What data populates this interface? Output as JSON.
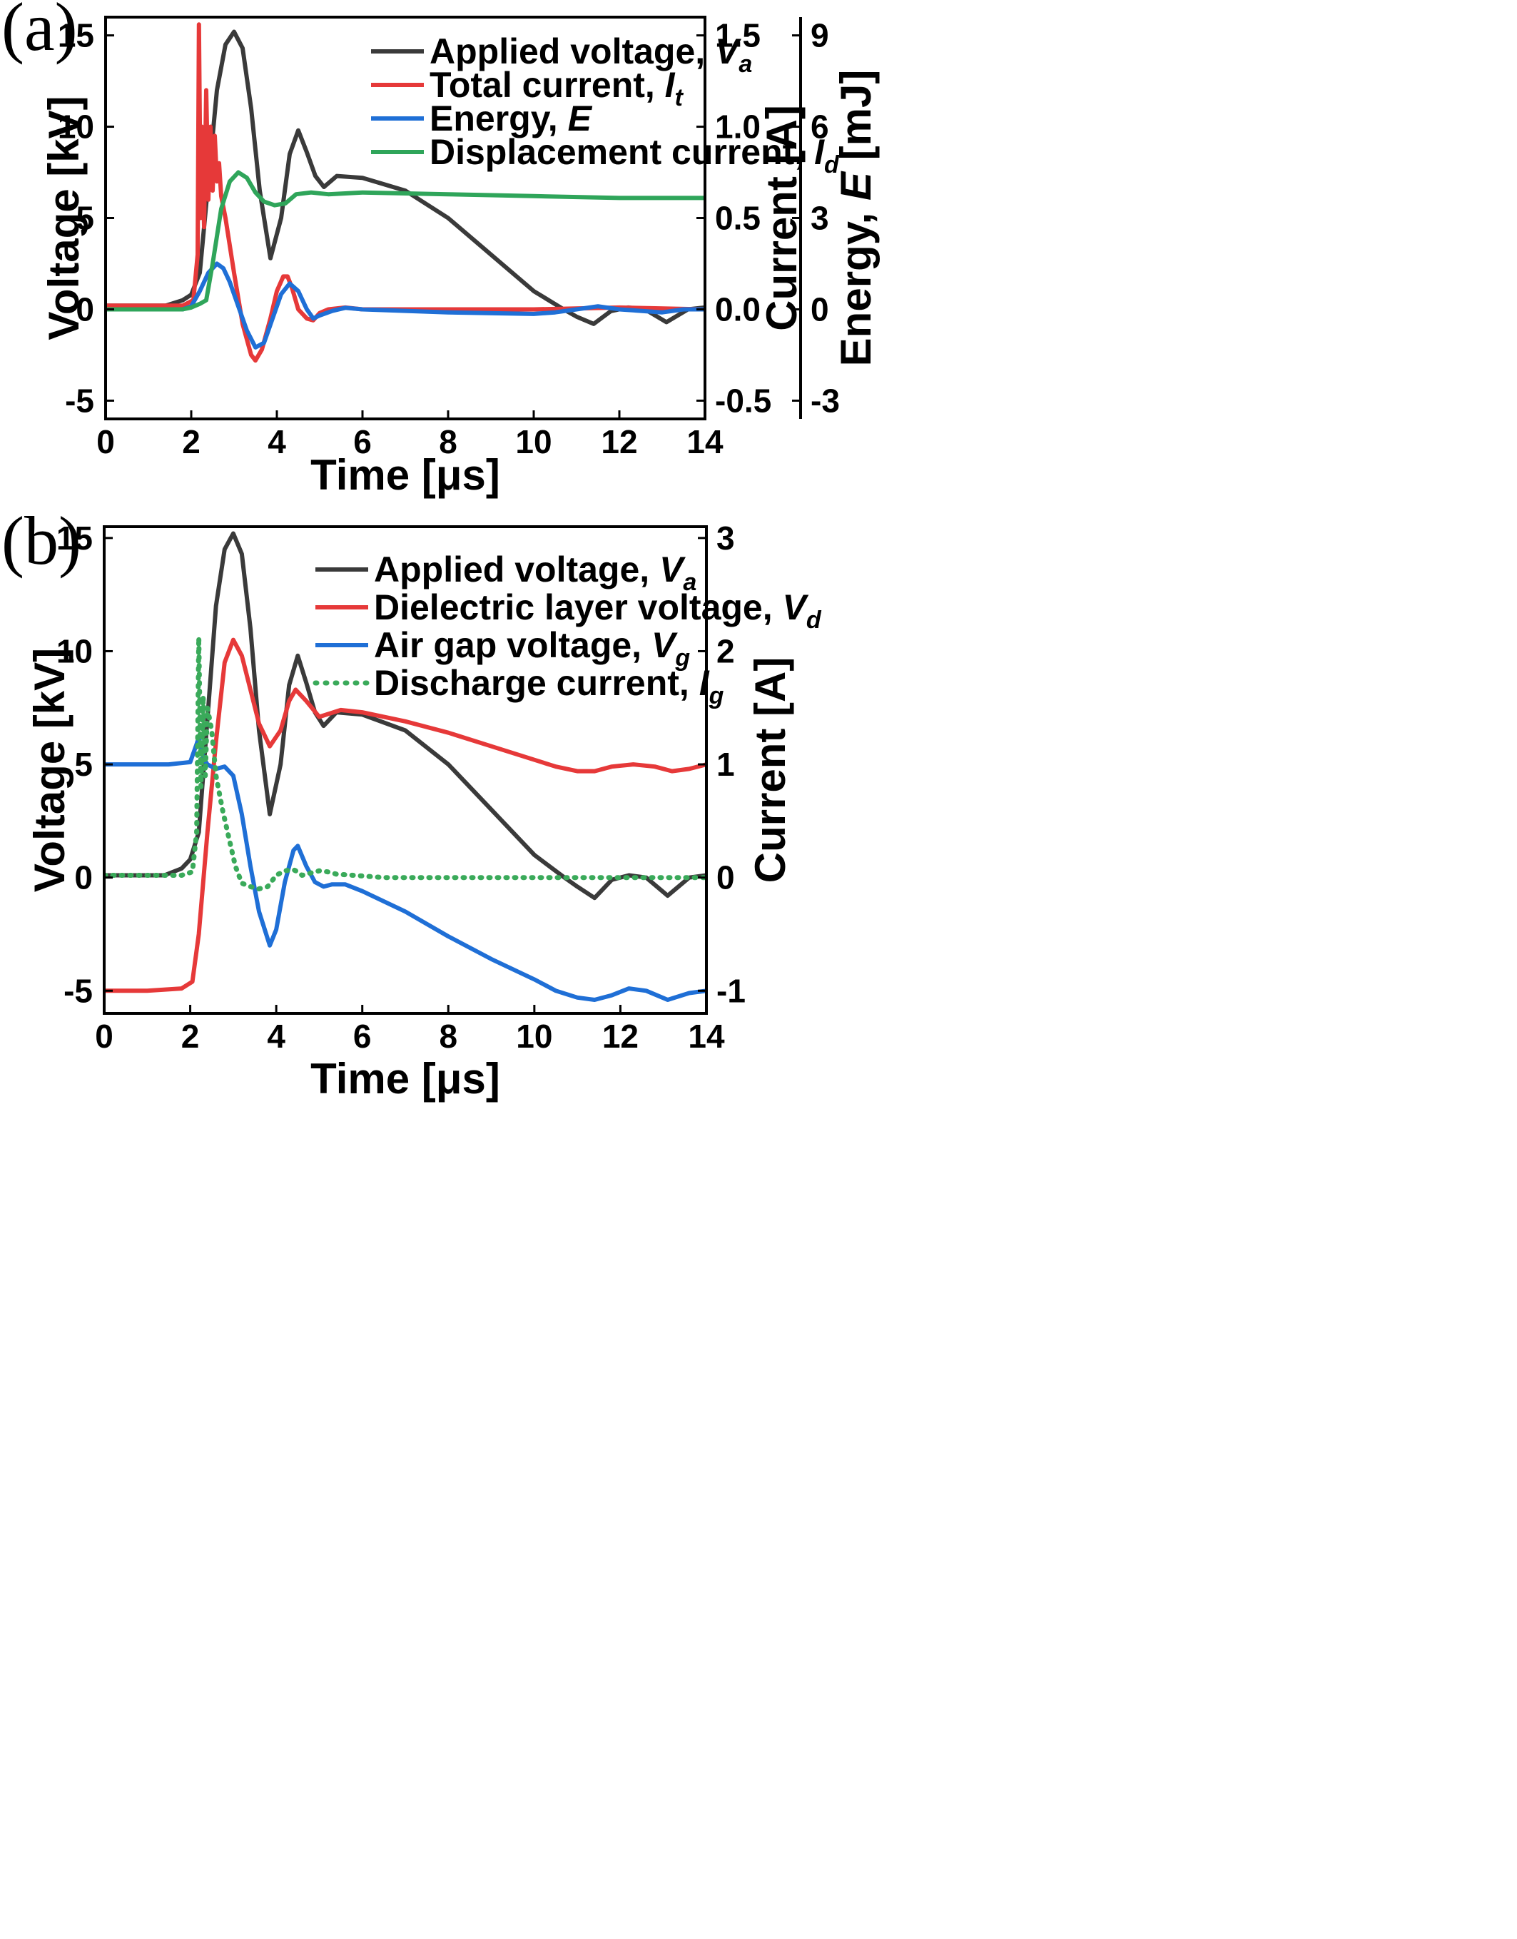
{
  "chart_data": [
    {
      "panel_label": "(a)",
      "type": "line",
      "xlabel": "Time [μs]",
      "xlim": [
        0,
        14
      ],
      "xticks": [
        "0",
        "2",
        "4",
        "6",
        "8",
        "10",
        "12",
        "14"
      ],
      "axes": {
        "left": {
          "label": "Voltage [kV]",
          "lim": [
            -6,
            16
          ],
          "ticks": [
            "-5",
            "0",
            "5",
            "10",
            "15"
          ]
        },
        "right": {
          "label": "Current [A]",
          "lim": [
            -0.6,
            1.6
          ],
          "ticks": [
            "-0.5",
            "0.0",
            "0.5",
            "1.0",
            "1.5"
          ]
        },
        "right2": {
          "label": "Energy, E [mJ]",
          "lim": [
            -3.6,
            9.6
          ],
          "ticks": [
            "-3",
            "0",
            "3",
            "6",
            "9"
          ]
        }
      },
      "legend_position": "top-right",
      "series": [
        {
          "name": "Applied voltage, Va",
          "color": "#3a3a3a",
          "axis": "left",
          "style": "solid",
          "x": [
            0,
            1.4,
            1.8,
            2.0,
            2.2,
            2.4,
            2.6,
            2.8,
            3.0,
            3.2,
            3.4,
            3.6,
            3.85,
            4.1,
            4.3,
            4.5,
            4.7,
            4.9,
            5.1,
            5.4,
            6.0,
            7.0,
            8.0,
            9.0,
            10.0,
            10.7,
            11.0,
            11.4,
            11.8,
            12.2,
            12.6,
            13.1,
            13.6,
            14.0
          ],
          "y": [
            0.2,
            0.2,
            0.5,
            0.8,
            2.0,
            7.0,
            12.0,
            14.5,
            15.2,
            14.3,
            11.0,
            6.5,
            2.8,
            5.0,
            8.5,
            9.8,
            8.6,
            7.3,
            6.7,
            7.3,
            7.2,
            6.5,
            5.0,
            3.0,
            1.0,
            0.0,
            -0.4,
            -0.8,
            -0.1,
            0.1,
            0.0,
            -0.7,
            0.0,
            0.1
          ]
        },
        {
          "name": "Total current, It",
          "color": "#e63939",
          "axis": "right",
          "style": "solid",
          "x": [
            0,
            1.8,
            2.05,
            2.15,
            2.18,
            2.22,
            2.25,
            2.3,
            2.35,
            2.4,
            2.45,
            2.5,
            2.55,
            2.6,
            2.65,
            2.7,
            2.8,
            3.0,
            3.2,
            3.4,
            3.5,
            3.65,
            3.85,
            4.0,
            4.15,
            4.25,
            4.35,
            4.5,
            4.7,
            4.85,
            5.0,
            5.2,
            5.6,
            6.0,
            8.0,
            10.0,
            12.0,
            14.0
          ],
          "y": [
            0.02,
            0.02,
            0.05,
            0.3,
            1.56,
            0.5,
            1.0,
            0.45,
            1.2,
            0.6,
            1.0,
            0.65,
            0.95,
            0.7,
            0.8,
            0.62,
            0.5,
            0.2,
            -0.08,
            -0.25,
            -0.28,
            -0.22,
            -0.05,
            0.1,
            0.18,
            0.18,
            0.12,
            0.0,
            -0.05,
            -0.06,
            -0.02,
            0.0,
            0.01,
            0.0,
            0.0,
            0.0,
            0.01,
            0.0
          ]
        },
        {
          "name": "Energy, E",
          "color": "#1f6fd6",
          "axis": "right2",
          "style": "solid",
          "x": [
            0,
            1.8,
            2.0,
            2.2,
            2.4,
            2.6,
            2.75,
            2.9,
            3.1,
            3.3,
            3.5,
            3.7,
            3.9,
            4.1,
            4.3,
            4.5,
            4.7,
            4.85,
            5.0,
            5.3,
            5.6,
            6.0,
            8.0,
            10.0,
            10.5,
            11.0,
            11.5,
            12.0,
            12.5,
            13.0,
            13.5,
            14.0
          ],
          "y": [
            0.0,
            0.0,
            0.1,
            0.6,
            1.2,
            1.5,
            1.35,
            0.9,
            0.1,
            -0.7,
            -1.25,
            -1.1,
            -0.3,
            0.5,
            0.85,
            0.6,
            0.0,
            -0.3,
            -0.2,
            -0.05,
            0.05,
            0.0,
            -0.1,
            -0.15,
            -0.1,
            0.0,
            0.1,
            0.0,
            -0.05,
            -0.1,
            0.0,
            0.0
          ]
        },
        {
          "name": "Displacement current, Id",
          "color": "#2fa55a",
          "axis": "right",
          "style": "solid",
          "x": [
            0,
            1.8,
            2.0,
            2.2,
            2.35,
            2.5,
            2.7,
            2.9,
            3.1,
            3.3,
            3.5,
            3.7,
            3.95,
            4.2,
            4.45,
            4.8,
            5.2,
            6.0,
            8.0,
            10.0,
            12.0,
            14.0
          ],
          "y": [
            0.0,
            0.0,
            0.01,
            0.03,
            0.05,
            0.25,
            0.55,
            0.7,
            0.75,
            0.72,
            0.64,
            0.59,
            0.57,
            0.58,
            0.63,
            0.64,
            0.63,
            0.64,
            0.63,
            0.62,
            0.61,
            0.61
          ]
        }
      ]
    },
    {
      "panel_label": "(b)",
      "type": "line",
      "xlabel": "Time [μs]",
      "xlim": [
        0,
        14
      ],
      "xticks": [
        "0",
        "2",
        "4",
        "6",
        "8",
        "10",
        "12",
        "14"
      ],
      "axes": {
        "left": {
          "label": "Voltage [kV]",
          "lim": [
            -6,
            15.5
          ],
          "ticks": [
            "-5",
            "0",
            "5",
            "10",
            "15"
          ]
        },
        "right": {
          "label": "Current [A]",
          "lim": [
            -1.2,
            3.1
          ],
          "ticks": [
            "-1",
            "0",
            "1",
            "2",
            "3"
          ]
        }
      },
      "legend_position": "top-right",
      "series": [
        {
          "name": "Applied voltage, Va",
          "color": "#3a3a3a",
          "axis": "left",
          "style": "solid",
          "x": [
            0,
            1.4,
            1.8,
            2.0,
            2.2,
            2.4,
            2.6,
            2.8,
            3.0,
            3.2,
            3.4,
            3.6,
            3.85,
            4.1,
            4.3,
            4.5,
            4.7,
            4.9,
            5.1,
            5.4,
            6.0,
            7.0,
            8.0,
            9.0,
            10.0,
            10.7,
            11.0,
            11.4,
            11.8,
            12.2,
            12.6,
            13.1,
            13.6,
            14.0
          ],
          "y": [
            0.1,
            0.1,
            0.4,
            0.8,
            2.0,
            7.0,
            12.0,
            14.5,
            15.2,
            14.3,
            11.0,
            6.5,
            2.8,
            5.0,
            8.5,
            9.8,
            8.6,
            7.3,
            6.7,
            7.3,
            7.2,
            6.5,
            5.0,
            3.0,
            1.0,
            0.0,
            -0.4,
            -0.9,
            -0.1,
            0.1,
            0.0,
            -0.8,
            0.0,
            0.1
          ]
        },
        {
          "name": "Dielectric layer voltage, Vd",
          "color": "#e63939",
          "axis": "left",
          "style": "solid",
          "x": [
            0,
            1.0,
            1.8,
            2.05,
            2.2,
            2.4,
            2.6,
            2.8,
            3.0,
            3.2,
            3.4,
            3.6,
            3.85,
            4.1,
            4.3,
            4.45,
            4.7,
            5.0,
            5.5,
            6.0,
            7.0,
            8.0,
            9.0,
            10.0,
            10.5,
            11.0,
            11.4,
            11.8,
            12.3,
            12.8,
            13.2,
            13.6,
            14.0
          ],
          "y": [
            -5.0,
            -5.0,
            -4.9,
            -4.6,
            -2.5,
            2.0,
            6.0,
            9.5,
            10.5,
            9.8,
            8.3,
            6.8,
            5.8,
            6.5,
            7.8,
            8.3,
            7.8,
            7.1,
            7.4,
            7.3,
            6.9,
            6.4,
            5.8,
            5.2,
            4.9,
            4.7,
            4.7,
            4.9,
            5.0,
            4.9,
            4.7,
            4.8,
            5.0
          ]
        },
        {
          "name": "Air gap voltage, Vg",
          "color": "#1f6fd6",
          "axis": "left",
          "style": "solid",
          "x": [
            0,
            1.5,
            2.0,
            2.15,
            2.2,
            2.3,
            2.4,
            2.6,
            2.8,
            3.0,
            3.2,
            3.4,
            3.6,
            3.85,
            4.0,
            4.2,
            4.4,
            4.5,
            4.7,
            4.9,
            5.1,
            5.3,
            5.6,
            6.0,
            7.0,
            8.0,
            9.0,
            10.0,
            10.5,
            11.0,
            11.4,
            11.8,
            12.2,
            12.6,
            13.1,
            13.6,
            14.0
          ],
          "y": [
            5.0,
            5.0,
            5.1,
            5.9,
            6.2,
            5.3,
            5.0,
            4.8,
            4.9,
            4.5,
            2.8,
            0.5,
            -1.5,
            -3.0,
            -2.3,
            -0.2,
            1.2,
            1.4,
            0.5,
            -0.2,
            -0.4,
            -0.3,
            -0.3,
            -0.6,
            -1.5,
            -2.6,
            -3.6,
            -4.5,
            -5.0,
            -5.3,
            -5.4,
            -5.2,
            -4.9,
            -5.0,
            -5.4,
            -5.1,
            -5.0
          ]
        },
        {
          "name": "Discharge current, Ig",
          "color": "#3aaa5a",
          "axis": "right",
          "style": "dotted",
          "x": [
            0,
            1.8,
            2.05,
            2.15,
            2.2,
            2.25,
            2.3,
            2.35,
            2.4,
            2.5,
            2.6,
            2.75,
            2.9,
            3.05,
            3.2,
            3.4,
            3.6,
            3.8,
            4.0,
            4.2,
            4.4,
            4.5,
            4.6,
            4.8,
            5.0,
            5.2,
            5.4,
            5.8,
            6.5,
            8.0,
            10.0,
            12.0,
            14.0
          ],
          "y": [
            0.02,
            0.02,
            0.05,
            0.4,
            2.12,
            0.8,
            1.6,
            0.9,
            1.5,
            1.3,
            0.9,
            0.6,
            0.35,
            0.1,
            -0.05,
            -0.08,
            -0.1,
            -0.08,
            0.02,
            0.06,
            0.07,
            0.05,
            0.02,
            0.04,
            0.06,
            0.05,
            0.03,
            0.02,
            0.0,
            0.0,
            0.0,
            0.0,
            0.0
          ]
        }
      ]
    }
  ]
}
